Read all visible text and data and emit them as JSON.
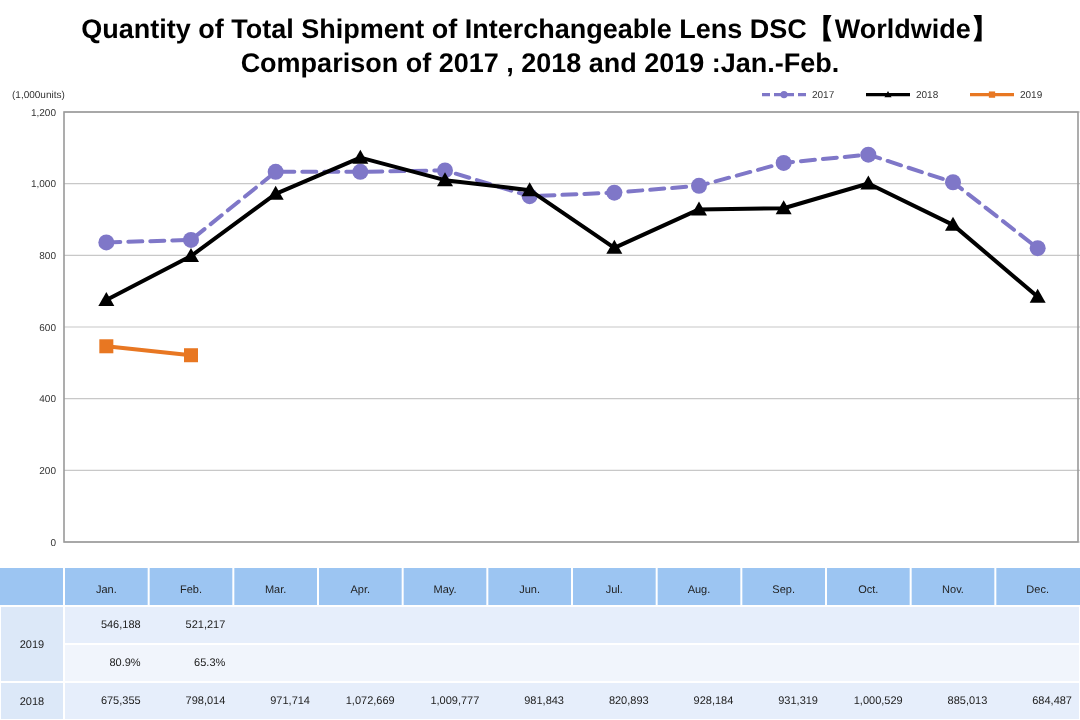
{
  "chart_data": {
    "type": "line",
    "title": "Quantity of Total Shipment of Interchangeable Lens DSC【Worldwide】",
    "subtitle": "Comparison of 2017 , 2018 and 2019 :Jan.-Feb.",
    "ylabel": "(1,000units)",
    "categories": [
      "Jan.",
      "Feb.",
      "Mar.",
      "Apr.",
      "May.",
      "Jun.",
      "Jul.",
      "Aug.",
      "Sep.",
      "Oct.",
      "Nov.",
      "Dec."
    ],
    "series": [
      {
        "name": "2017",
        "color": "#7f77c8",
        "line_style": "dashed",
        "marker": "circle",
        "values": [
          836,
          843,
          1033,
          1033,
          1037,
          965,
          975,
          994,
          1058,
          1081,
          1004,
          820
        ]
      },
      {
        "name": "2018",
        "color": "#000000",
        "line_style": "solid",
        "marker": "triangle",
        "values": [
          675.355,
          798.014,
          971.714,
          1072.669,
          1009.777,
          981.843,
          820.893,
          928.184,
          931.319,
          1000.529,
          885.013,
          684.487
        ]
      },
      {
        "name": "2019",
        "color": "#e87722",
        "line_style": "solid",
        "marker": "square",
        "values": [
          546.188,
          521.217,
          null,
          null,
          null,
          null,
          null,
          null,
          null,
          null,
          null,
          null
        ]
      }
    ],
    "annotations": [
      "546,188",
      "521,217",
      "80.9%",
      "65.3%",
      "675,355",
      "798,014",
      "971,714",
      "1,072,669",
      "1,009,777",
      "981,843",
      "820,893",
      "928,184",
      "931,319",
      "1,000,529",
      "885,013",
      "684,487"
    ],
    "ylim": [
      0,
      1200
    ],
    "yticks": [
      0,
      200,
      400,
      600,
      800,
      {
        "value": 1000,
        "label": "1,000"
      },
      {
        "value": 1200,
        "label": "1,200"
      }
    ],
    "grid": "y",
    "legend": "top right"
  }
}
